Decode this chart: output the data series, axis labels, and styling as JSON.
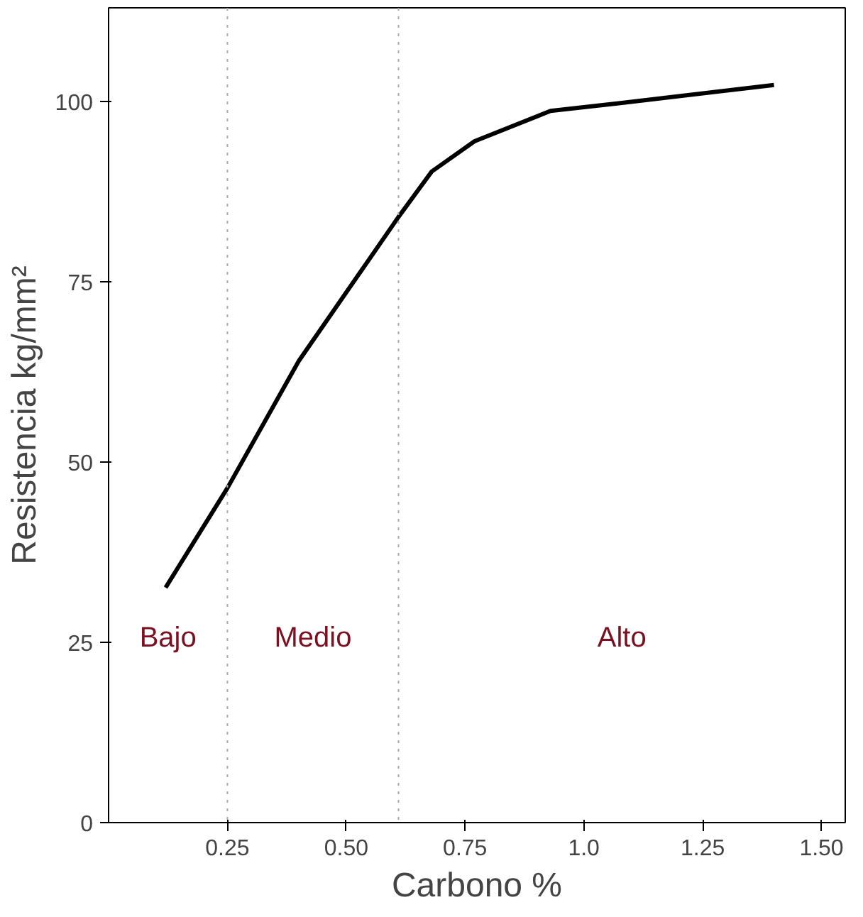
{
  "chart_data": {
    "type": "line",
    "xlabel": "Carbono %",
    "ylabel": "Resistencia kg/mm²",
    "x": [
      0.12,
      0.25,
      0.4,
      0.61,
      0.68,
      0.77,
      0.93,
      1.08,
      1.4
    ],
    "series": [
      {
        "color": "#000000",
        "values": [
          32.6,
          46.4,
          64,
          84,
          90.3,
          94.5,
          98.7,
          99.8,
          102.3
        ]
      }
    ],
    "xlim": [
      0,
      1.55
    ],
    "ylim": [
      0,
      113
    ],
    "xticks": [
      {
        "value": 0.25,
        "label": "0.25"
      },
      {
        "value": 0.5,
        "label": "0.50"
      },
      {
        "value": 0.75,
        "label": "0.75"
      },
      {
        "value": 1.0,
        "label": "1.0"
      },
      {
        "value": 1.25,
        "label": "1.25"
      },
      {
        "value": 1.5,
        "label": "1.50"
      }
    ],
    "yticks": [
      0,
      25,
      50,
      75,
      100
    ],
    "grid": false,
    "marker": "none",
    "line_style": "solid",
    "ref_lines": [
      {
        "axis": "x",
        "value": 0.25,
        "color": "#aaaaaa",
        "line_style": "dotted"
      },
      {
        "axis": "x",
        "value": 0.61,
        "color": "#aaaaaa",
        "line_style": "dotted"
      }
    ],
    "annotations": [
      "Bajo",
      "Medio",
      "Alto"
    ]
  }
}
